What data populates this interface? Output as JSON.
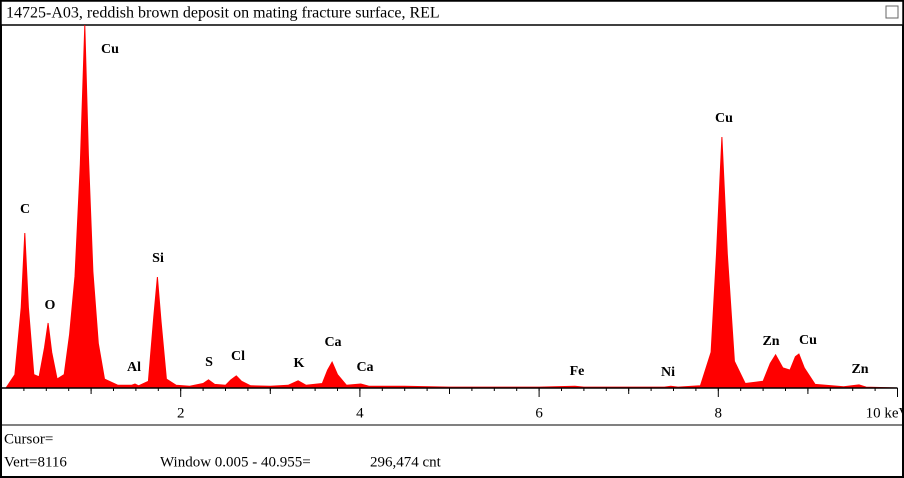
{
  "chart_data": {
    "type": "spectrum",
    "title": "14725-A03, reddish brown deposit on mating fracture surface, REL",
    "x": [
      0.05,
      0.15,
      0.22,
      0.26,
      0.3,
      0.36,
      0.42,
      0.48,
      0.52,
      0.56,
      0.62,
      0.7,
      0.76,
      0.82,
      0.88,
      0.93,
      0.97,
      1.02,
      1.08,
      1.15,
      1.3,
      1.45,
      1.49,
      1.53,
      1.64,
      1.7,
      1.74,
      1.78,
      1.84,
      1.95,
      2.1,
      2.25,
      2.31,
      2.38,
      2.5,
      2.56,
      2.62,
      2.68,
      2.78,
      3.0,
      3.2,
      3.31,
      3.4,
      3.58,
      3.64,
      3.69,
      3.75,
      3.85,
      4.01,
      4.1,
      4.5,
      5.0,
      6.0,
      6.4,
      6.5,
      7.4,
      7.47,
      7.55,
      7.8,
      7.92,
      7.98,
      8.04,
      8.1,
      8.18,
      8.3,
      8.5,
      8.58,
      8.64,
      8.72,
      8.8,
      8.86,
      8.9,
      8.96,
      9.08,
      9.4,
      9.57,
      9.65,
      10.0
    ],
    "values": [
      0,
      300,
      1800,
      3466,
      1800,
      300,
      250,
      900,
      1453,
      800,
      200,
      300,
      1200,
      2500,
      5000,
      8116,
      5200,
      2600,
      1000,
      200,
      60,
      60,
      90,
      50,
      150,
      1600,
      2482,
      1500,
      200,
      60,
      40,
      100,
      180,
      80,
      60,
      180,
      270,
      150,
      50,
      40,
      60,
      160,
      60,
      100,
      400,
      580,
      300,
      60,
      90,
      40,
      40,
      20,
      20,
      40,
      20,
      20,
      40,
      20,
      50,
      800,
      3000,
      5612,
      3000,
      600,
      100,
      150,
      550,
      740,
      450,
      400,
      700,
      760,
      450,
      80,
      30,
      70,
      20,
      0
    ],
    "color": "#ff0000",
    "xlim": [
      0,
      10
    ],
    "ylim": [
      0,
      8116
    ],
    "xticks": [
      2,
      4,
      6,
      8,
      {
        "value": 10,
        "label": "10 keV"
      }
    ],
    "xminor": [
      1,
      3,
      5,
      7,
      9
    ],
    "annotations": [
      "C",
      "Cu",
      "O",
      "Si",
      "Al",
      "S",
      "Cl",
      "K",
      "Ca",
      "Ca",
      "Fe",
      "Ni",
      "Cu",
      "Zn",
      "Cu",
      "Zn"
    ],
    "footer": {
      "cursor": "Cursor=",
      "vert": "Vert=8116",
      "window": "Window 0.005 - 40.955=",
      "count": "296,474 cnt"
    }
  }
}
